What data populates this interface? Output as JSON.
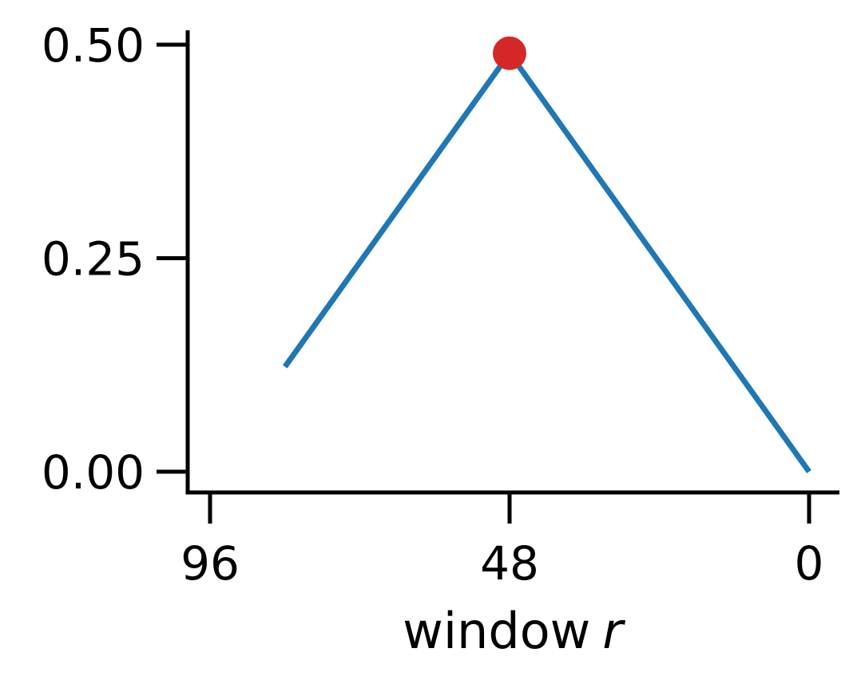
{
  "chart_data": {
    "type": "line",
    "title": "",
    "xlabel": "window",
    "xlabel_var": "r",
    "ylabel": "",
    "x_inverted": true,
    "xlim": [
      96,
      0
    ],
    "ylim": [
      0,
      0.5
    ],
    "x_ticks": [
      96,
      48,
      0
    ],
    "x_tick_labels": [
      "96",
      "48",
      "0"
    ],
    "y_ticks": [
      0,
      0.25,
      0.5
    ],
    "y_tick_labels": [
      "0.00",
      "0.25",
      "0.50"
    ],
    "grid": false,
    "series": [
      {
        "color": "#1f77b4",
        "x": [
          84,
          48,
          0
        ],
        "y": [
          0.123,
          0.49,
          0.0
        ]
      }
    ],
    "highlight": {
      "x": 48,
      "y": 0.49,
      "color": "#d62728"
    }
  }
}
